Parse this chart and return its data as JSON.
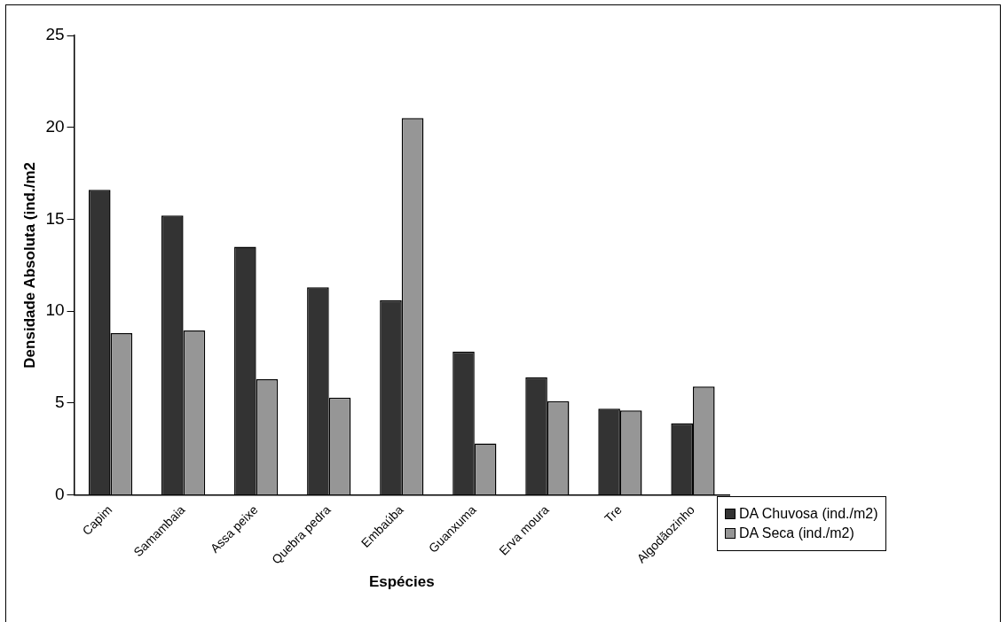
{
  "chart_data": {
    "type": "bar",
    "xlabel": "Espécies",
    "ylabel": "Densidade Absoluta (ind./m2",
    "categories": [
      "Capim",
      "Samambaia",
      "Assa peixe",
      "Quebra pedra",
      "Embaúba",
      "Guanxuma",
      "Erva moura",
      "Tre",
      "Algodãozinho"
    ],
    "series": [
      {
        "name": "DA Chuvosa (ind./m2)",
        "color": "#333333",
        "values": [
          16.6,
          15.2,
          13.5,
          11.3,
          10.6,
          7.8,
          6.4,
          4.7,
          3.9
        ]
      },
      {
        "name": "DA Seca (ind./m2)",
        "color": "#969696",
        "values": [
          8.8,
          8.95,
          6.3,
          5.3,
          20.5,
          2.8,
          5.1,
          4.6,
          5.9
        ]
      }
    ],
    "ylim": [
      0,
      25
    ],
    "yticks": [
      0,
      5,
      10,
      15,
      20,
      25
    ],
    "grid": false,
    "legend": "bottom right"
  }
}
